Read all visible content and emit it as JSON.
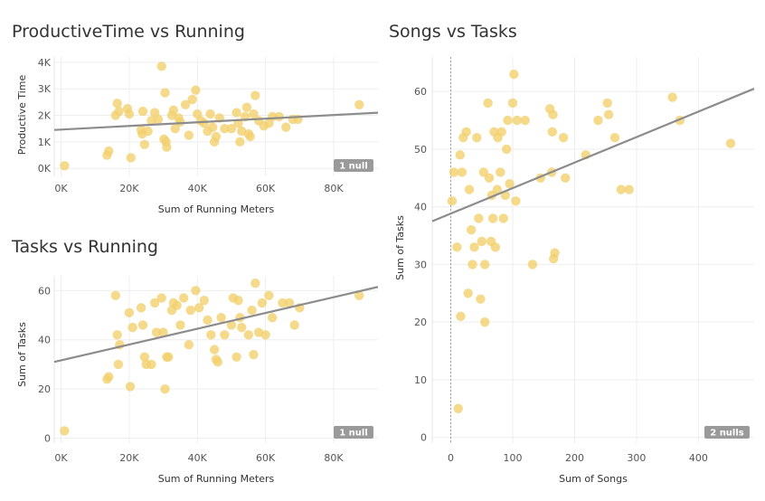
{
  "colors": {
    "point": "#f2cf6b",
    "trend": "#8c8c8c",
    "grid": "#eeeeee",
    "badge": "#9a9a9a"
  },
  "chart_data": [
    {
      "id": "c1",
      "type": "scatter",
      "title": "ProductiveTime vs Running",
      "xlabel": "Sum of Running Meters",
      "ylabel": "Productive Time",
      "xlim": [
        -2000,
        93000
      ],
      "ylim": [
        -300,
        4200
      ],
      "xticks": [
        0,
        20000,
        40000,
        60000,
        80000
      ],
      "xtick_labels": [
        "0K",
        "20K",
        "40K",
        "60K",
        "80K"
      ],
      "yticks": [
        0,
        1000,
        2000,
        3000,
        4000
      ],
      "ytick_labels": [
        "0K",
        "1K",
        "2K",
        "3K",
        "4K"
      ],
      "trend": [
        [
          -2000,
          1450
        ],
        [
          93000,
          2100
        ]
      ],
      "null_badge": "1 null",
      "points": [
        [
          1000,
          100
        ],
        [
          13500,
          500
        ],
        [
          14000,
          650
        ],
        [
          16000,
          2000
        ],
        [
          16500,
          2450
        ],
        [
          17000,
          2150
        ],
        [
          19500,
          2250
        ],
        [
          20000,
          2050
        ],
        [
          20500,
          400
        ],
        [
          23500,
          1450
        ],
        [
          23800,
          1300
        ],
        [
          24000,
          2150
        ],
        [
          24500,
          900
        ],
        [
          25500,
          1400
        ],
        [
          26500,
          1800
        ],
        [
          27500,
          2100
        ],
        [
          28500,
          1850
        ],
        [
          29500,
          3850
        ],
        [
          30200,
          1100
        ],
        [
          30500,
          2850
        ],
        [
          30800,
          1000
        ],
        [
          31000,
          800
        ],
        [
          32500,
          2000
        ],
        [
          33000,
          2200
        ],
        [
          33500,
          1500
        ],
        [
          34500,
          1900
        ],
        [
          35000,
          1750
        ],
        [
          36500,
          2400
        ],
        [
          37500,
          1250
        ],
        [
          38500,
          2600
        ],
        [
          39500,
          2950
        ],
        [
          40000,
          2050
        ],
        [
          41000,
          1800
        ],
        [
          42000,
          1700
        ],
        [
          43000,
          1400
        ],
        [
          43800,
          2050
        ],
        [
          44500,
          1550
        ],
        [
          45000,
          1000
        ],
        [
          45500,
          1200
        ],
        [
          46500,
          1900
        ],
        [
          48000,
          1500
        ],
        [
          50000,
          1500
        ],
        [
          51500,
          2100
        ],
        [
          52000,
          1700
        ],
        [
          52500,
          1000
        ],
        [
          53000,
          1400
        ],
        [
          54000,
          1950
        ],
        [
          54500,
          2300
        ],
        [
          55000,
          1300
        ],
        [
          55500,
          1200
        ],
        [
          56500,
          2050
        ],
        [
          57000,
          2750
        ],
        [
          58000,
          1800
        ],
        [
          59500,
          1600
        ],
        [
          61000,
          1700
        ],
        [
          62000,
          1950
        ],
        [
          64000,
          1950
        ],
        [
          66000,
          1550
        ],
        [
          68000,
          1850
        ],
        [
          69500,
          1850
        ],
        [
          87500,
          2400
        ]
      ]
    },
    {
      "id": "c2",
      "type": "scatter",
      "title": "Tasks vs Running",
      "xlabel": "Sum of Running Meters",
      "ylabel": "Sum of Tasks",
      "xlim": [
        -2000,
        93000
      ],
      "ylim": [
        -2,
        66
      ],
      "xticks": [
        0,
        20000,
        40000,
        60000,
        80000
      ],
      "xtick_labels": [
        "0K",
        "20K",
        "40K",
        "60K",
        "80K"
      ],
      "yticks": [
        0,
        20,
        40,
        60
      ],
      "ytick_labels": [
        "0",
        "20",
        "40",
        "60"
      ],
      "trend": [
        [
          -2000,
          31
        ],
        [
          93000,
          61.5
        ]
      ],
      "null_badge": "1 null",
      "points": [
        [
          1000,
          3
        ],
        [
          13500,
          24
        ],
        [
          14000,
          25
        ],
        [
          16000,
          58
        ],
        [
          16500,
          42
        ],
        [
          16800,
          30
        ],
        [
          17200,
          38
        ],
        [
          20000,
          51
        ],
        [
          20300,
          21
        ],
        [
          21000,
          45
        ],
        [
          23500,
          53
        ],
        [
          24000,
          46
        ],
        [
          24500,
          33
        ],
        [
          25000,
          30
        ],
        [
          26500,
          30
        ],
        [
          27500,
          55
        ],
        [
          28000,
          43
        ],
        [
          29500,
          57
        ],
        [
          30000,
          43
        ],
        [
          30500,
          20
        ],
        [
          31000,
          33
        ],
        [
          31500,
          33
        ],
        [
          32500,
          52
        ],
        [
          33000,
          55
        ],
        [
          34000,
          54
        ],
        [
          35000,
          46
        ],
        [
          36000,
          57
        ],
        [
          37500,
          38
        ],
        [
          38000,
          52
        ],
        [
          39500,
          60
        ],
        [
          40500,
          53
        ],
        [
          42000,
          56
        ],
        [
          43000,
          48
        ],
        [
          44000,
          42
        ],
        [
          45000,
          36
        ],
        [
          45500,
          32
        ],
        [
          46000,
          31
        ],
        [
          47000,
          49
        ],
        [
          48000,
          42
        ],
        [
          50000,
          46
        ],
        [
          50500,
          57
        ],
        [
          51500,
          33
        ],
        [
          52000,
          56
        ],
        [
          52500,
          49
        ],
        [
          53000,
          45
        ],
        [
          55000,
          42
        ],
        [
          56000,
          52
        ],
        [
          56500,
          34
        ],
        [
          57000,
          63
        ],
        [
          58000,
          43
        ],
        [
          59000,
          55
        ],
        [
          60000,
          42
        ],
        [
          61000,
          58
        ],
        [
          62000,
          49
        ],
        [
          65000,
          55
        ],
        [
          67000,
          55
        ],
        [
          68500,
          46
        ],
        [
          70000,
          53
        ],
        [
          87500,
          58
        ]
      ]
    },
    {
      "id": "c3",
      "type": "scatter",
      "title": "Songs vs Tasks",
      "xlabel": "Sum of Songs",
      "ylabel": "Sum of Tasks",
      "xlim": [
        -30,
        490
      ],
      "ylim": [
        -1,
        66
      ],
      "xticks": [
        0,
        100,
        200,
        300,
        400
      ],
      "xtick_labels": [
        "0",
        "100",
        "200",
        "300",
        "400"
      ],
      "yticks": [
        0,
        10,
        20,
        30,
        40,
        50,
        60
      ],
      "ytick_labels": [
        "0",
        "10",
        "20",
        "30",
        "40",
        "50",
        "60"
      ],
      "trend": [
        [
          -30,
          37.5
        ],
        [
          490,
          60.5
        ]
      ],
      "null_badge": "2 nulls",
      "points": [
        [
          2,
          41
        ],
        [
          5,
          46
        ],
        [
          10,
          33
        ],
        [
          12,
          5
        ],
        [
          15,
          49
        ],
        [
          16,
          21
        ],
        [
          18,
          46
        ],
        [
          20,
          52
        ],
        [
          25,
          53
        ],
        [
          28,
          25
        ],
        [
          30,
          43
        ],
        [
          33,
          36
        ],
        [
          35,
          30
        ],
        [
          38,
          33
        ],
        [
          42,
          52
        ],
        [
          45,
          38
        ],
        [
          48,
          24
        ],
        [
          50,
          34
        ],
        [
          53,
          46
        ],
        [
          55,
          30
        ],
        [
          55,
          20
        ],
        [
          60,
          58
        ],
        [
          62,
          45
        ],
        [
          65,
          34
        ],
        [
          66,
          42
        ],
        [
          68,
          38
        ],
        [
          70,
          53
        ],
        [
          72,
          33
        ],
        [
          75,
          43
        ],
        [
          76,
          52
        ],
        [
          80,
          46
        ],
        [
          82,
          53
        ],
        [
          85,
          38
        ],
        [
          88,
          42
        ],
        [
          90,
          50
        ],
        [
          92,
          55
        ],
        [
          95,
          44
        ],
        [
          100,
          58
        ],
        [
          102,
          63
        ],
        [
          105,
          41
        ],
        [
          107,
          55
        ],
        [
          120,
          55
        ],
        [
          132,
          30
        ],
        [
          145,
          45
        ],
        [
          160,
          57
        ],
        [
          163,
          46
        ],
        [
          164,
          53
        ],
        [
          165,
          56
        ],
        [
          166,
          31
        ],
        [
          168,
          32
        ],
        [
          182,
          52
        ],
        [
          185,
          45
        ],
        [
          218,
          49
        ],
        [
          238,
          55
        ],
        [
          253,
          58
        ],
        [
          255,
          56
        ],
        [
          265,
          52
        ],
        [
          275,
          43
        ],
        [
          288,
          43
        ],
        [
          358,
          59
        ],
        [
          370,
          55
        ],
        [
          452,
          51
        ]
      ]
    }
  ]
}
